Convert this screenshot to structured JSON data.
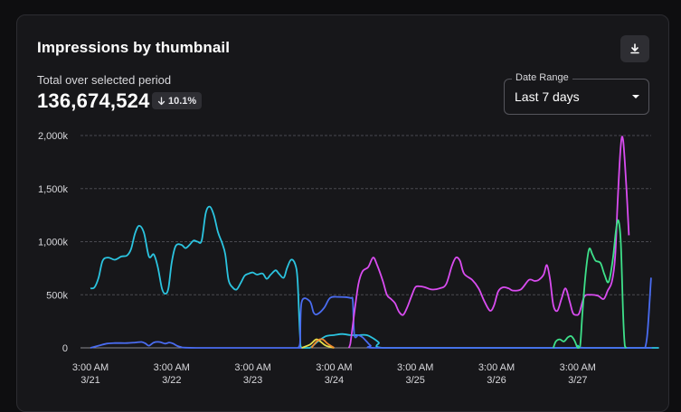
{
  "card": {
    "title": "Impressions by thumbnail",
    "subtitle": "Total over selected period",
    "total": "136,674,524",
    "delta": "10.1%",
    "delta_icon": "arrow-down-icon",
    "download_icon": "download-icon"
  },
  "date_range": {
    "legend": "Date Range",
    "value": "Last 7 days"
  },
  "colors": {
    "background": "#0e0e10",
    "card": "#17171a",
    "cyan": "#2bc4e0",
    "blue": "#4a6cf0",
    "magenta": "#d94cf0",
    "green": "#3ee08a",
    "yellow": "#e8e04a",
    "orange": "#f08a2e"
  },
  "chart_data": {
    "type": "line",
    "title": "",
    "xlabel": "",
    "ylabel": "",
    "ylim": [
      0,
      2000
    ],
    "xlim": [
      0,
      7.0
    ],
    "grid": true,
    "y_ticks": [
      {
        "value": 0,
        "label": "0"
      },
      {
        "value": 500,
        "label": "500k"
      },
      {
        "value": 1000,
        "label": "1,000k"
      },
      {
        "value": 1500,
        "label": "1,500k"
      },
      {
        "value": 2000,
        "label": "2,000k"
      }
    ],
    "x_ticks": [
      {
        "value": 0,
        "line1": "3:00 AM",
        "line2": "3/21"
      },
      {
        "value": 1,
        "line1": "3:00 AM",
        "line2": "3/22"
      },
      {
        "value": 2,
        "line1": "3:00 AM",
        "line2": "3/23"
      },
      {
        "value": 3,
        "line1": "3:00 AM",
        "line2": "3/24"
      },
      {
        "value": 4,
        "line1": "3:00 AM",
        "line2": "3/25"
      },
      {
        "value": 5,
        "line1": "3:00 AM",
        "line2": "3/26"
      },
      {
        "value": 6,
        "line1": "3:00 AM",
        "line2": "3/27"
      }
    ],
    "series": [
      {
        "color": "#2bc4e0",
        "points": [
          [
            0,
            560
          ],
          [
            0.05,
            570
          ],
          [
            0.1,
            660
          ],
          [
            0.15,
            820
          ],
          [
            0.22,
            850
          ],
          [
            0.3,
            830
          ],
          [
            0.38,
            860
          ],
          [
            0.45,
            870
          ],
          [
            0.5,
            930
          ],
          [
            0.55,
            1080
          ],
          [
            0.6,
            1150
          ],
          [
            0.66,
            1080
          ],
          [
            0.72,
            860
          ],
          [
            0.78,
            880
          ],
          [
            0.83,
            760
          ],
          [
            0.88,
            560
          ],
          [
            0.92,
            510
          ],
          [
            0.96,
            560
          ],
          [
            1.0,
            800
          ],
          [
            1.05,
            960
          ],
          [
            1.12,
            970
          ],
          [
            1.17,
            940
          ],
          [
            1.22,
            970
          ],
          [
            1.27,
            1010
          ],
          [
            1.32,
            1000
          ],
          [
            1.37,
            1010
          ],
          [
            1.42,
            1270
          ],
          [
            1.47,
            1330
          ],
          [
            1.52,
            1250
          ],
          [
            1.57,
            1090
          ],
          [
            1.62,
            990
          ],
          [
            1.66,
            880
          ],
          [
            1.7,
            640
          ],
          [
            1.75,
            570
          ],
          [
            1.8,
            550
          ],
          [
            1.85,
            610
          ],
          [
            1.9,
            680
          ],
          [
            1.95,
            700
          ],
          [
            2.0,
            710
          ],
          [
            2.05,
            690
          ],
          [
            2.12,
            700
          ],
          [
            2.17,
            650
          ],
          [
            2.22,
            690
          ],
          [
            2.28,
            730
          ],
          [
            2.32,
            700
          ],
          [
            2.38,
            660
          ],
          [
            2.42,
            750
          ],
          [
            2.47,
            830
          ],
          [
            2.52,
            790
          ],
          [
            2.55,
            640
          ],
          [
            2.58,
            120
          ],
          [
            2.6,
            0
          ],
          [
            2.7,
            0
          ],
          [
            2.8,
            60
          ],
          [
            2.9,
            110
          ],
          [
            3.0,
            120
          ],
          [
            3.1,
            130
          ],
          [
            3.2,
            120
          ],
          [
            3.3,
            120
          ],
          [
            3.4,
            120
          ],
          [
            3.48,
            90
          ],
          [
            3.55,
            50
          ],
          [
            3.6,
            0
          ],
          [
            4.5,
            0
          ],
          [
            5.5,
            0
          ],
          [
            5.95,
            0
          ],
          [
            6.0,
            20
          ],
          [
            6.1,
            0
          ],
          [
            7.0,
            0
          ]
        ]
      },
      {
        "color": "#4a6cf0",
        "points": [
          [
            0,
            0
          ],
          [
            0.1,
            20
          ],
          [
            0.2,
            40
          ],
          [
            0.3,
            45
          ],
          [
            0.45,
            45
          ],
          [
            0.55,
            50
          ],
          [
            0.63,
            55
          ],
          [
            0.68,
            40
          ],
          [
            0.72,
            20
          ],
          [
            0.78,
            50
          ],
          [
            0.85,
            55
          ],
          [
            0.92,
            40
          ],
          [
            0.97,
            50
          ],
          [
            1.02,
            40
          ],
          [
            1.1,
            10
          ],
          [
            1.3,
            0
          ],
          [
            2.5,
            0
          ],
          [
            2.55,
            0
          ],
          [
            2.58,
            40
          ],
          [
            2.6,
            430
          ],
          [
            2.7,
            440
          ],
          [
            2.75,
            330
          ],
          [
            2.8,
            320
          ],
          [
            2.88,
            380
          ],
          [
            2.95,
            470
          ],
          [
            3.05,
            480
          ],
          [
            3.2,
            470
          ],
          [
            3.23,
            440
          ],
          [
            3.25,
            120
          ],
          [
            3.3,
            120
          ],
          [
            3.35,
            100
          ],
          [
            3.4,
            60
          ],
          [
            3.45,
            20
          ],
          [
            3.5,
            0
          ],
          [
            4.5,
            0
          ],
          [
            5.5,
            0
          ],
          [
            6.8,
            0
          ],
          [
            6.83,
            0
          ],
          [
            6.86,
            150
          ],
          [
            6.9,
            620
          ],
          [
            6.9,
            620
          ]
        ]
      },
      {
        "color": "#d94cf0",
        "points": [
          [
            3.18,
            0
          ],
          [
            3.2,
            40
          ],
          [
            3.25,
            330
          ],
          [
            3.3,
            600
          ],
          [
            3.35,
            720
          ],
          [
            3.42,
            760
          ],
          [
            3.48,
            850
          ],
          [
            3.53,
            780
          ],
          [
            3.6,
            630
          ],
          [
            3.65,
            500
          ],
          [
            3.7,
            460
          ],
          [
            3.75,
            420
          ],
          [
            3.8,
            340
          ],
          [
            3.85,
            310
          ],
          [
            3.9,
            380
          ],
          [
            3.95,
            480
          ],
          [
            4.0,
            570
          ],
          [
            4.05,
            580
          ],
          [
            4.12,
            570
          ],
          [
            4.2,
            550
          ],
          [
            4.3,
            560
          ],
          [
            4.38,
            600
          ],
          [
            4.45,
            770
          ],
          [
            4.5,
            850
          ],
          [
            4.55,
            820
          ],
          [
            4.6,
            700
          ],
          [
            4.7,
            640
          ],
          [
            4.78,
            560
          ],
          [
            4.85,
            440
          ],
          [
            4.92,
            350
          ],
          [
            4.97,
            400
          ],
          [
            5.02,
            530
          ],
          [
            5.08,
            570
          ],
          [
            5.15,
            560
          ],
          [
            5.2,
            540
          ],
          [
            5.3,
            550
          ],
          [
            5.4,
            640
          ],
          [
            5.47,
            630
          ],
          [
            5.52,
            640
          ],
          [
            5.58,
            690
          ],
          [
            5.62,
            780
          ],
          [
            5.66,
            640
          ],
          [
            5.7,
            400
          ],
          [
            5.75,
            350
          ],
          [
            5.8,
            460
          ],
          [
            5.85,
            560
          ],
          [
            5.9,
            440
          ],
          [
            5.94,
            330
          ],
          [
            5.98,
            310
          ],
          [
            6.02,
            330
          ],
          [
            6.08,
            480
          ],
          [
            6.15,
            500
          ],
          [
            6.25,
            490
          ],
          [
            6.32,
            460
          ],
          [
            6.37,
            540
          ],
          [
            6.42,
            620
          ],
          [
            6.46,
            850
          ],
          [
            6.49,
            1350
          ],
          [
            6.53,
            1900
          ],
          [
            6.56,
            1950
          ],
          [
            6.6,
            1500
          ],
          [
            6.63,
            1060
          ]
        ]
      },
      {
        "color": "#3ee08a",
        "points": [
          [
            5.7,
            0
          ],
          [
            5.73,
            60
          ],
          [
            5.78,
            80
          ],
          [
            5.83,
            60
          ],
          [
            5.88,
            100
          ],
          [
            5.92,
            110
          ],
          [
            5.96,
            70
          ],
          [
            6.0,
            0
          ],
          [
            6.03,
            20
          ],
          [
            6.06,
            350
          ],
          [
            6.1,
            720
          ],
          [
            6.14,
            930
          ],
          [
            6.18,
            880
          ],
          [
            6.22,
            820
          ],
          [
            6.28,
            800
          ],
          [
            6.33,
            690
          ],
          [
            6.38,
            620
          ],
          [
            6.43,
            820
          ],
          [
            6.47,
            1100
          ],
          [
            6.5,
            1200
          ],
          [
            6.53,
            1000
          ],
          [
            6.56,
            300
          ],
          [
            6.58,
            20
          ],
          [
            6.6,
            0
          ]
        ]
      },
      {
        "color": "#e8e04a",
        "points": [
          [
            2.6,
            0
          ],
          [
            2.7,
            30
          ],
          [
            2.78,
            80
          ],
          [
            2.83,
            60
          ],
          [
            2.9,
            20
          ],
          [
            3.0,
            0
          ]
        ]
      },
      {
        "color": "#f08a2e",
        "points": [
          [
            2.72,
            0
          ],
          [
            2.8,
            70
          ],
          [
            2.86,
            80
          ],
          [
            2.92,
            40
          ],
          [
            3.0,
            0
          ]
        ]
      }
    ]
  }
}
